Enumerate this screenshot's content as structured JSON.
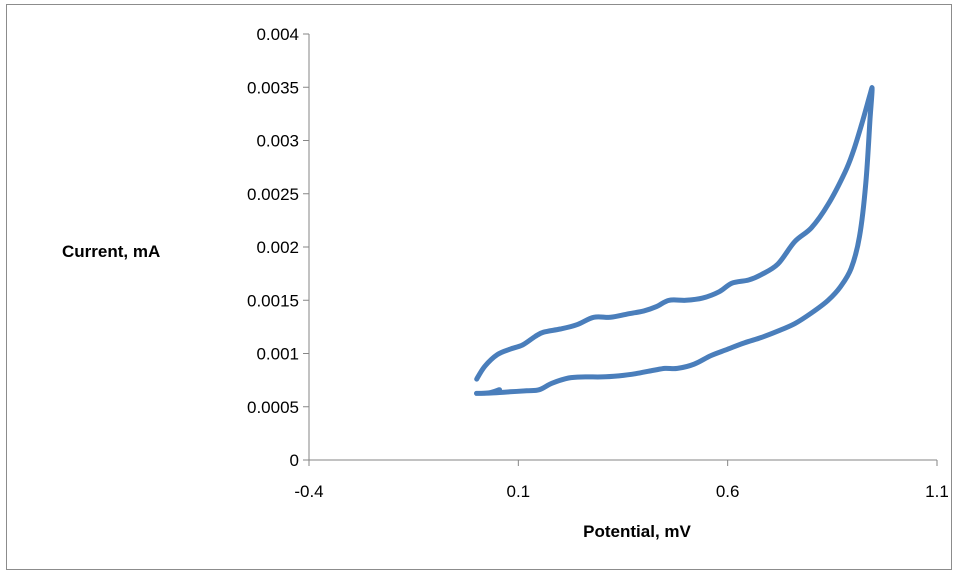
{
  "chart_data": {
    "type": "scatter",
    "subtype": "smooth-line",
    "title": "",
    "xlabel": "Potential, mV",
    "ylabel": "Current, mA",
    "xlim": [
      -0.4,
      1.1
    ],
    "ylim": [
      0,
      0.004
    ],
    "x_ticks": [
      "-0.4",
      "0.1",
      "0.6",
      "1.1"
    ],
    "y_ticks": [
      "0",
      "0.0005",
      "0.001",
      "0.0015",
      "0.002",
      "0.0025",
      "0.003",
      "0.0035",
      "0.004"
    ],
    "x_tick_values": [
      -0.4,
      0.1,
      0.6,
      1.1
    ],
    "y_tick_values": [
      0,
      0.0005,
      0.001,
      0.0015,
      0.002,
      0.0025,
      0.003,
      0.0035,
      0.004
    ],
    "grid": false,
    "legend": "none",
    "line_color": "#4a7ebb",
    "series": [
      {
        "points": [
          [
            0.0005,
            0.00076
          ],
          [
            0.02,
            0.00088
          ],
          [
            0.05,
            0.00099
          ],
          [
            0.08,
            0.00104
          ],
          [
            0.11,
            0.00108
          ],
          [
            0.14,
            0.00116
          ],
          [
            0.16,
            0.0012
          ],
          [
            0.2,
            0.00123
          ],
          [
            0.24,
            0.00127
          ],
          [
            0.28,
            0.00134
          ],
          [
            0.32,
            0.00134
          ],
          [
            0.36,
            0.00137
          ],
          [
            0.4,
            0.0014
          ],
          [
            0.43,
            0.00144
          ],
          [
            0.46,
            0.0015
          ],
          [
            0.5,
            0.0015
          ],
          [
            0.54,
            0.00152
          ],
          [
            0.58,
            0.00158
          ],
          [
            0.61,
            0.00166
          ],
          [
            0.65,
            0.00169
          ],
          [
            0.68,
            0.00174
          ],
          [
            0.72,
            0.00184
          ],
          [
            0.76,
            0.00205
          ],
          [
            0.8,
            0.00218
          ],
          [
            0.84,
            0.0024
          ],
          [
            0.88,
            0.0027
          ],
          [
            0.9,
            0.0029
          ],
          [
            0.92,
            0.00315
          ],
          [
            0.94,
            0.00343
          ],
          [
            0.945,
            0.00348
          ],
          [
            0.94,
            0.0032
          ],
          [
            0.93,
            0.0026
          ],
          [
            0.915,
            0.0021
          ],
          [
            0.895,
            0.0018
          ],
          [
            0.87,
            0.00163
          ],
          [
            0.84,
            0.0015
          ],
          [
            0.8,
            0.00138
          ],
          [
            0.76,
            0.00128
          ],
          [
            0.72,
            0.00121
          ],
          [
            0.68,
            0.00115
          ],
          [
            0.64,
            0.0011
          ],
          [
            0.6,
            0.00104
          ],
          [
            0.56,
            0.00098
          ],
          [
            0.52,
            0.0009
          ],
          [
            0.48,
            0.00086
          ],
          [
            0.45,
            0.00086
          ],
          [
            0.42,
            0.00084
          ],
          [
            0.38,
            0.00081
          ],
          [
            0.34,
            0.00079
          ],
          [
            0.3,
            0.00078
          ],
          [
            0.26,
            0.00078
          ],
          [
            0.22,
            0.00077
          ],
          [
            0.18,
            0.00072
          ],
          [
            0.15,
            0.00066
          ],
          [
            0.12,
            0.00065
          ],
          [
            0.08,
            0.00064
          ],
          [
            0.04,
            0.00063
          ],
          [
            0.0,
            0.000625
          ],
          [
            0.03,
            0.00063
          ],
          [
            0.055,
            0.00066
          ]
        ]
      }
    ]
  }
}
